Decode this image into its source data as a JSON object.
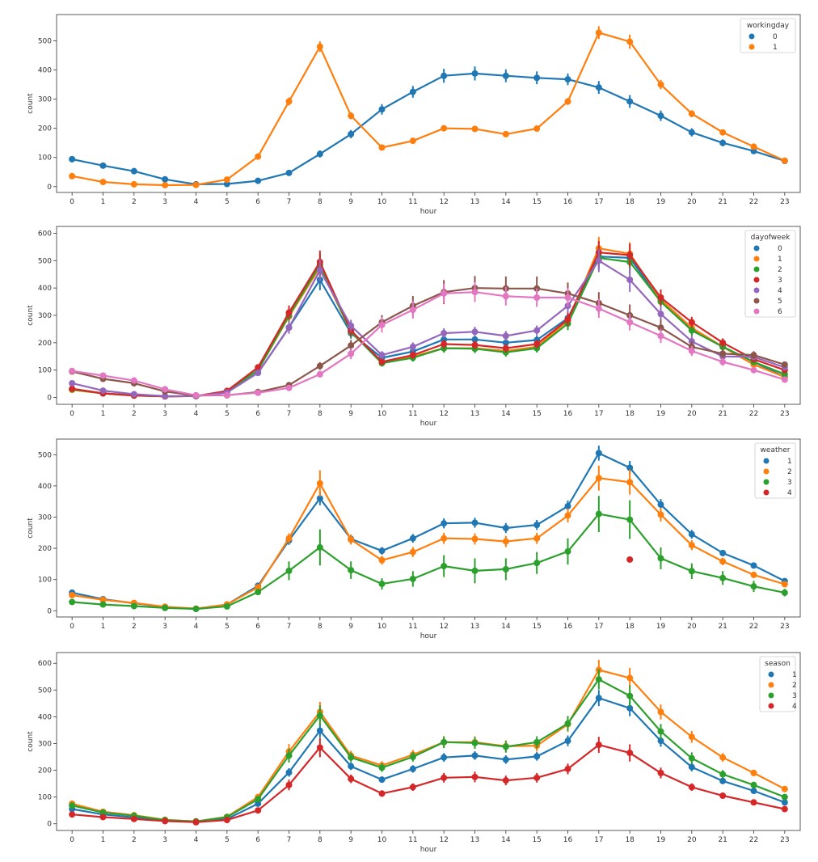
{
  "top_label": "hour",
  "chart_data": [
    {
      "type": "line",
      "x": [
        0,
        1,
        2,
        3,
        4,
        5,
        6,
        7,
        8,
        9,
        10,
        11,
        12,
        13,
        14,
        15,
        16,
        17,
        18,
        19,
        20,
        21,
        22,
        23
      ],
      "xlabel": "hour",
      "ylabel": "count",
      "ylim": [
        -20,
        590
      ],
      "yticks": [
        0,
        100,
        200,
        300,
        400,
        500
      ],
      "legend": {
        "title": "workingday",
        "position": "top-right"
      },
      "series": [
        {
          "name": "0",
          "color": "#1f77b4",
          "values": [
            94,
            72,
            53,
            25,
            8,
            9,
            20,
            47,
            112,
            180,
            265,
            325,
            380,
            388,
            380,
            373,
            368,
            340,
            292,
            243,
            186,
            150,
            122,
            88
          ],
          "errors": [
            8,
            6,
            5,
            4,
            2,
            3,
            4,
            6,
            12,
            14,
            18,
            20,
            24,
            24,
            22,
            22,
            20,
            22,
            22,
            18,
            14,
            12,
            10,
            8
          ]
        },
        {
          "name": "1",
          "color": "#ff7f0e",
          "values": [
            36,
            16,
            8,
            5,
            6,
            24,
            103,
            292,
            480,
            243,
            134,
            157,
            200,
            198,
            180,
            199,
            292,
            528,
            497,
            350,
            250,
            186,
            137,
            89
          ],
          "errors": [
            3,
            2,
            2,
            1,
            1,
            3,
            6,
            14,
            18,
            12,
            6,
            7,
            8,
            8,
            7,
            8,
            12,
            22,
            24,
            16,
            12,
            10,
            8,
            6
          ]
        }
      ]
    },
    {
      "type": "line",
      "x": [
        0,
        1,
        2,
        3,
        4,
        5,
        6,
        7,
        8,
        9,
        10,
        11,
        12,
        13,
        14,
        15,
        16,
        17,
        18,
        19,
        20,
        21,
        22,
        23
      ],
      "xlabel": "hour",
      "ylabel": "count",
      "ylim": [
        -25,
        625
      ],
      "yticks": [
        0,
        100,
        200,
        300,
        400,
        500,
        600
      ],
      "legend": {
        "title": "dayofweek",
        "position": "top-right"
      },
      "series": [
        {
          "name": "0",
          "color": "#1f77b4",
          "values": [
            29,
            15,
            8,
            4,
            5,
            20,
            90,
            256,
            430,
            235,
            145,
            168,
            212,
            212,
            200,
            210,
            290,
            515,
            510,
            352,
            250,
            185,
            130,
            75
          ],
          "errors": [
            3,
            2,
            1,
            1,
            1,
            2,
            8,
            22,
            38,
            20,
            12,
            14,
            16,
            16,
            16,
            16,
            24,
            40,
            40,
            30,
            20,
            16,
            12,
            8
          ]
        },
        {
          "name": "1",
          "color": "#ff7f0e",
          "values": [
            28,
            15,
            7,
            4,
            5,
            22,
            100,
            296,
            476,
            240,
            130,
            150,
            180,
            180,
            170,
            185,
            280,
            545,
            525,
            358,
            255,
            185,
            120,
            75
          ],
          "errors": [
            3,
            2,
            1,
            1,
            1,
            2,
            8,
            24,
            40,
            20,
            12,
            14,
            16,
            16,
            16,
            16,
            24,
            42,
            42,
            30,
            20,
            16,
            12,
            8
          ]
        },
        {
          "name": "2",
          "color": "#2ca02c",
          "values": [
            30,
            15,
            7,
            4,
            5,
            22,
            100,
            300,
            485,
            240,
            125,
            145,
            180,
            178,
            165,
            180,
            270,
            510,
            495,
            350,
            245,
            185,
            130,
            85
          ],
          "errors": [
            3,
            2,
            1,
            1,
            1,
            2,
            8,
            24,
            40,
            20,
            12,
            14,
            16,
            16,
            16,
            16,
            24,
            42,
            42,
            30,
            20,
            16,
            12,
            8
          ]
        },
        {
          "name": "3",
          "color": "#d62728",
          "values": [
            32,
            15,
            7,
            4,
            5,
            24,
            110,
            310,
            495,
            245,
            130,
            155,
            195,
            192,
            180,
            195,
            285,
            530,
            520,
            365,
            275,
            200,
            140,
            100
          ],
          "errors": [
            3,
            2,
            1,
            1,
            1,
            2,
            8,
            26,
            42,
            20,
            12,
            14,
            16,
            16,
            16,
            16,
            24,
            42,
            42,
            30,
            20,
            16,
            12,
            8
          ]
        },
        {
          "name": "4",
          "color": "#9467bd",
          "values": [
            52,
            25,
            12,
            5,
            5,
            18,
            90,
            255,
            465,
            262,
            155,
            185,
            235,
            240,
            225,
            245,
            335,
            500,
            430,
            305,
            205,
            150,
            148,
            110
          ],
          "errors": [
            5,
            3,
            2,
            1,
            1,
            2,
            8,
            22,
            40,
            22,
            14,
            16,
            18,
            18,
            18,
            18,
            26,
            42,
            44,
            30,
            20,
            14,
            12,
            10
          ]
        },
        {
          "name": "5",
          "color": "#8c564b",
          "values": [
            95,
            68,
            52,
            22,
            7,
            8,
            20,
            45,
            115,
            190,
            275,
            335,
            385,
            400,
            398,
            398,
            380,
            345,
            300,
            255,
            185,
            160,
            155,
            120
          ],
          "errors": [
            6,
            5,
            4,
            3,
            1,
            2,
            4,
            8,
            14,
            20,
            26,
            36,
            44,
            44,
            44,
            44,
            40,
            40,
            40,
            30,
            22,
            18,
            14,
            10
          ]
        },
        {
          "name": "6",
          "color": "#e377c2",
          "values": [
            97,
            80,
            62,
            30,
            8,
            9,
            17,
            35,
            85,
            160,
            265,
            320,
            380,
            385,
            370,
            365,
            365,
            325,
            275,
            225,
            170,
            130,
            100,
            65
          ],
          "errors": [
            6,
            5,
            4,
            3,
            1,
            2,
            4,
            6,
            12,
            20,
            28,
            32,
            36,
            36,
            34,
            34,
            34,
            34,
            30,
            26,
            18,
            14,
            10,
            8
          ]
        }
      ]
    },
    {
      "type": "line",
      "x": [
        0,
        1,
        2,
        3,
        4,
        5,
        6,
        7,
        8,
        9,
        10,
        11,
        12,
        13,
        14,
        15,
        16,
        17,
        18,
        19,
        20,
        21,
        22,
        23
      ],
      "xlabel": "hour",
      "ylabel": "count",
      "ylim": [
        -20,
        550
      ],
      "yticks": [
        0,
        100,
        200,
        300,
        400,
        500
      ],
      "legend": {
        "title": "weather",
        "position": "top-right"
      },
      "series": [
        {
          "name": "1",
          "color": "#1f77b4",
          "values": [
            58,
            37,
            24,
            12,
            6,
            20,
            80,
            225,
            360,
            230,
            192,
            232,
            280,
            282,
            265,
            275,
            335,
            505,
            458,
            340,
            245,
            185,
            145,
            95
          ],
          "errors": [
            5,
            3,
            2,
            1,
            1,
            2,
            6,
            14,
            22,
            14,
            12,
            14,
            16,
            16,
            16,
            16,
            18,
            24,
            22,
            18,
            14,
            10,
            8,
            6
          ]
        },
        {
          "name": "2",
          "color": "#ff7f0e",
          "values": [
            50,
            35,
            25,
            13,
            7,
            20,
            75,
            232,
            408,
            228,
            162,
            188,
            232,
            230,
            222,
            232,
            305,
            425,
            412,
            308,
            210,
            158,
            115,
            85
          ],
          "errors": [
            5,
            3,
            2,
            1,
            1,
            2,
            6,
            16,
            42,
            16,
            14,
            16,
            18,
            18,
            18,
            18,
            22,
            40,
            40,
            22,
            16,
            12,
            10,
            8
          ]
        },
        {
          "name": "3",
          "color": "#2ca02c",
          "values": [
            28,
            20,
            15,
            9,
            6,
            14,
            60,
            128,
            203,
            130,
            86,
            102,
            143,
            128,
            133,
            153,
            190,
            310,
            292,
            168,
            127,
            105,
            78,
            58
          ],
          "errors": [
            5,
            3,
            2,
            1,
            1,
            2,
            8,
            30,
            58,
            28,
            18,
            25,
            35,
            40,
            35,
            35,
            42,
            58,
            62,
            35,
            25,
            22,
            18,
            12
          ]
        },
        {
          "name": "4",
          "color": "#d62728",
          "values": [
            null,
            null,
            null,
            null,
            null,
            null,
            null,
            null,
            null,
            null,
            null,
            null,
            null,
            null,
            null,
            null,
            null,
            null,
            164,
            null,
            null,
            null,
            null,
            null
          ],
          "errors": [
            0,
            0,
            0,
            0,
            0,
            0,
            0,
            0,
            0,
            0,
            0,
            0,
            0,
            0,
            0,
            0,
            0,
            0,
            0,
            0,
            0,
            0,
            0,
            0
          ]
        }
      ]
    },
    {
      "type": "line",
      "x": [
        0,
        1,
        2,
        3,
        4,
        5,
        6,
        7,
        8,
        9,
        10,
        11,
        12,
        13,
        14,
        15,
        16,
        17,
        18,
        19,
        20,
        21,
        22,
        23
      ],
      "xlabel": "hour",
      "ylabel": "count",
      "ylim": [
        -25,
        640
      ],
      "yticks": [
        0,
        100,
        200,
        300,
        400,
        500,
        600
      ],
      "legend": {
        "title": "season",
        "position": "top-right"
      },
      "series": [
        {
          "name": "1",
          "color": "#1f77b4",
          "values": [
            55,
            35,
            24,
            12,
            6,
            18,
            75,
            192,
            348,
            215,
            165,
            205,
            248,
            255,
            240,
            252,
            310,
            470,
            432,
            310,
            212,
            160,
            123,
            80
          ],
          "errors": [
            4,
            3,
            2,
            1,
            1,
            2,
            6,
            16,
            26,
            14,
            12,
            14,
            16,
            16,
            16,
            16,
            20,
            30,
            30,
            22,
            16,
            12,
            10,
            8
          ]
        },
        {
          "name": "2",
          "color": "#ff7f0e",
          "values": [
            75,
            45,
            32,
            15,
            9,
            26,
            100,
            270,
            418,
            255,
            218,
            258,
            305,
            305,
            290,
            292,
            372,
            575,
            545,
            418,
            325,
            248,
            190,
            130
          ],
          "errors": [
            5,
            4,
            3,
            2,
            1,
            3,
            8,
            28,
            38,
            18,
            16,
            18,
            22,
            22,
            22,
            22,
            28,
            38,
            38,
            28,
            22,
            16,
            12,
            10
          ]
        },
        {
          "name": "3",
          "color": "#2ca02c",
          "values": [
            68,
            42,
            30,
            14,
            9,
            25,
            92,
            255,
            405,
            248,
            210,
            250,
            305,
            302,
            288,
            305,
            375,
            540,
            478,
            345,
            245,
            185,
            145,
            100
          ],
          "errors": [
            5,
            4,
            3,
            2,
            1,
            3,
            8,
            26,
            38,
            18,
            16,
            18,
            22,
            22,
            22,
            22,
            28,
            38,
            40,
            28,
            22,
            16,
            12,
            10
          ]
        },
        {
          "name": "4",
          "color": "#d62728",
          "values": [
            35,
            25,
            18,
            10,
            6,
            14,
            50,
            145,
            285,
            168,
            113,
            137,
            172,
            175,
            162,
            172,
            205,
            295,
            265,
            190,
            137,
            105,
            80,
            55
          ],
          "errors": [
            4,
            3,
            2,
            1,
            1,
            2,
            6,
            20,
            36,
            16,
            12,
            14,
            18,
            20,
            18,
            18,
            20,
            30,
            32,
            20,
            14,
            10,
            8,
            6
          ]
        }
      ]
    }
  ]
}
